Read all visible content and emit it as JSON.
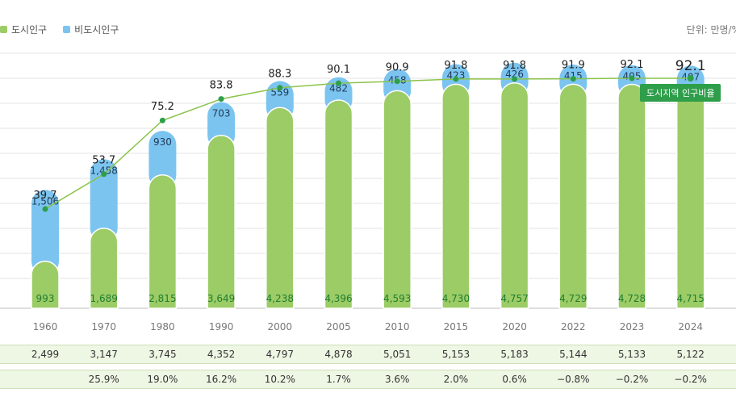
{
  "legend": {
    "urban_label": "도시인구",
    "nonurban_label": "비도시인구",
    "unit": "단위: 만명/%"
  },
  "ratio_badge": "도시지역 인구비율",
  "colors": {
    "urban": "#9ccc65",
    "nonurban": "#7cc4f0",
    "line": "#8bc34a",
    "dot": "#2e9e4a",
    "badge": "#2e9e4a",
    "urban_label": "#1e7d32",
    "grid": "#e3e3e3"
  },
  "chart_data": {
    "type": "bar",
    "stacked": true,
    "categories": [
      "1960",
      "1970",
      "1980",
      "1990",
      "2000",
      "2005",
      "2010",
      "2015",
      "2020",
      "2022",
      "2023",
      "2024"
    ],
    "series": [
      {
        "name": "도시인구",
        "values": [
          993,
          1689,
          2815,
          3649,
          4238,
          4396,
          4593,
          4730,
          4757,
          4729,
          4728,
          4715
        ],
        "labels": [
          "993",
          "1,689",
          "2,815",
          "3,649",
          "4,238",
          "4,396",
          "4,593",
          "4,730",
          "4,757",
          "4,729",
          "4,728",
          "4,715"
        ]
      },
      {
        "name": "비도시인구",
        "values": [
          1506,
          1458,
          930,
          703,
          559,
          482,
          458,
          423,
          426,
          415,
          405,
          407
        ],
        "labels": [
          "1,506",
          "1,458",
          "930",
          "703",
          "559",
          "482",
          "458",
          "423",
          "426",
          "415",
          "405",
          "407"
        ]
      }
    ],
    "ratio": {
      "name": "도시지역 인구비율",
      "values": [
        39.7,
        53.7,
        75.2,
        83.8,
        88.3,
        90.1,
        90.9,
        91.8,
        91.8,
        91.9,
        92.1,
        92.1
      ],
      "labels": [
        "39.7",
        "53.7",
        "75.2",
        "83.8",
        "88.3",
        "90.1",
        "90.9",
        "91.8",
        "91.8",
        "91.9",
        "92.1",
        "92.1"
      ]
    },
    "totals": [
      "2,499",
      "3,147",
      "3,745",
      "4,352",
      "4,797",
      "4,878",
      "5,051",
      "5,153",
      "5,183",
      "5,144",
      "5,133",
      "5,122"
    ],
    "growth": [
      "",
      "25.9%",
      "19.0%",
      "16.2%",
      "10.2%",
      "1.7%",
      "3.6%",
      "2.0%",
      "0.6%",
      "−0.8%",
      "−0.2%",
      "−0.2%"
    ],
    "grid": true
  }
}
